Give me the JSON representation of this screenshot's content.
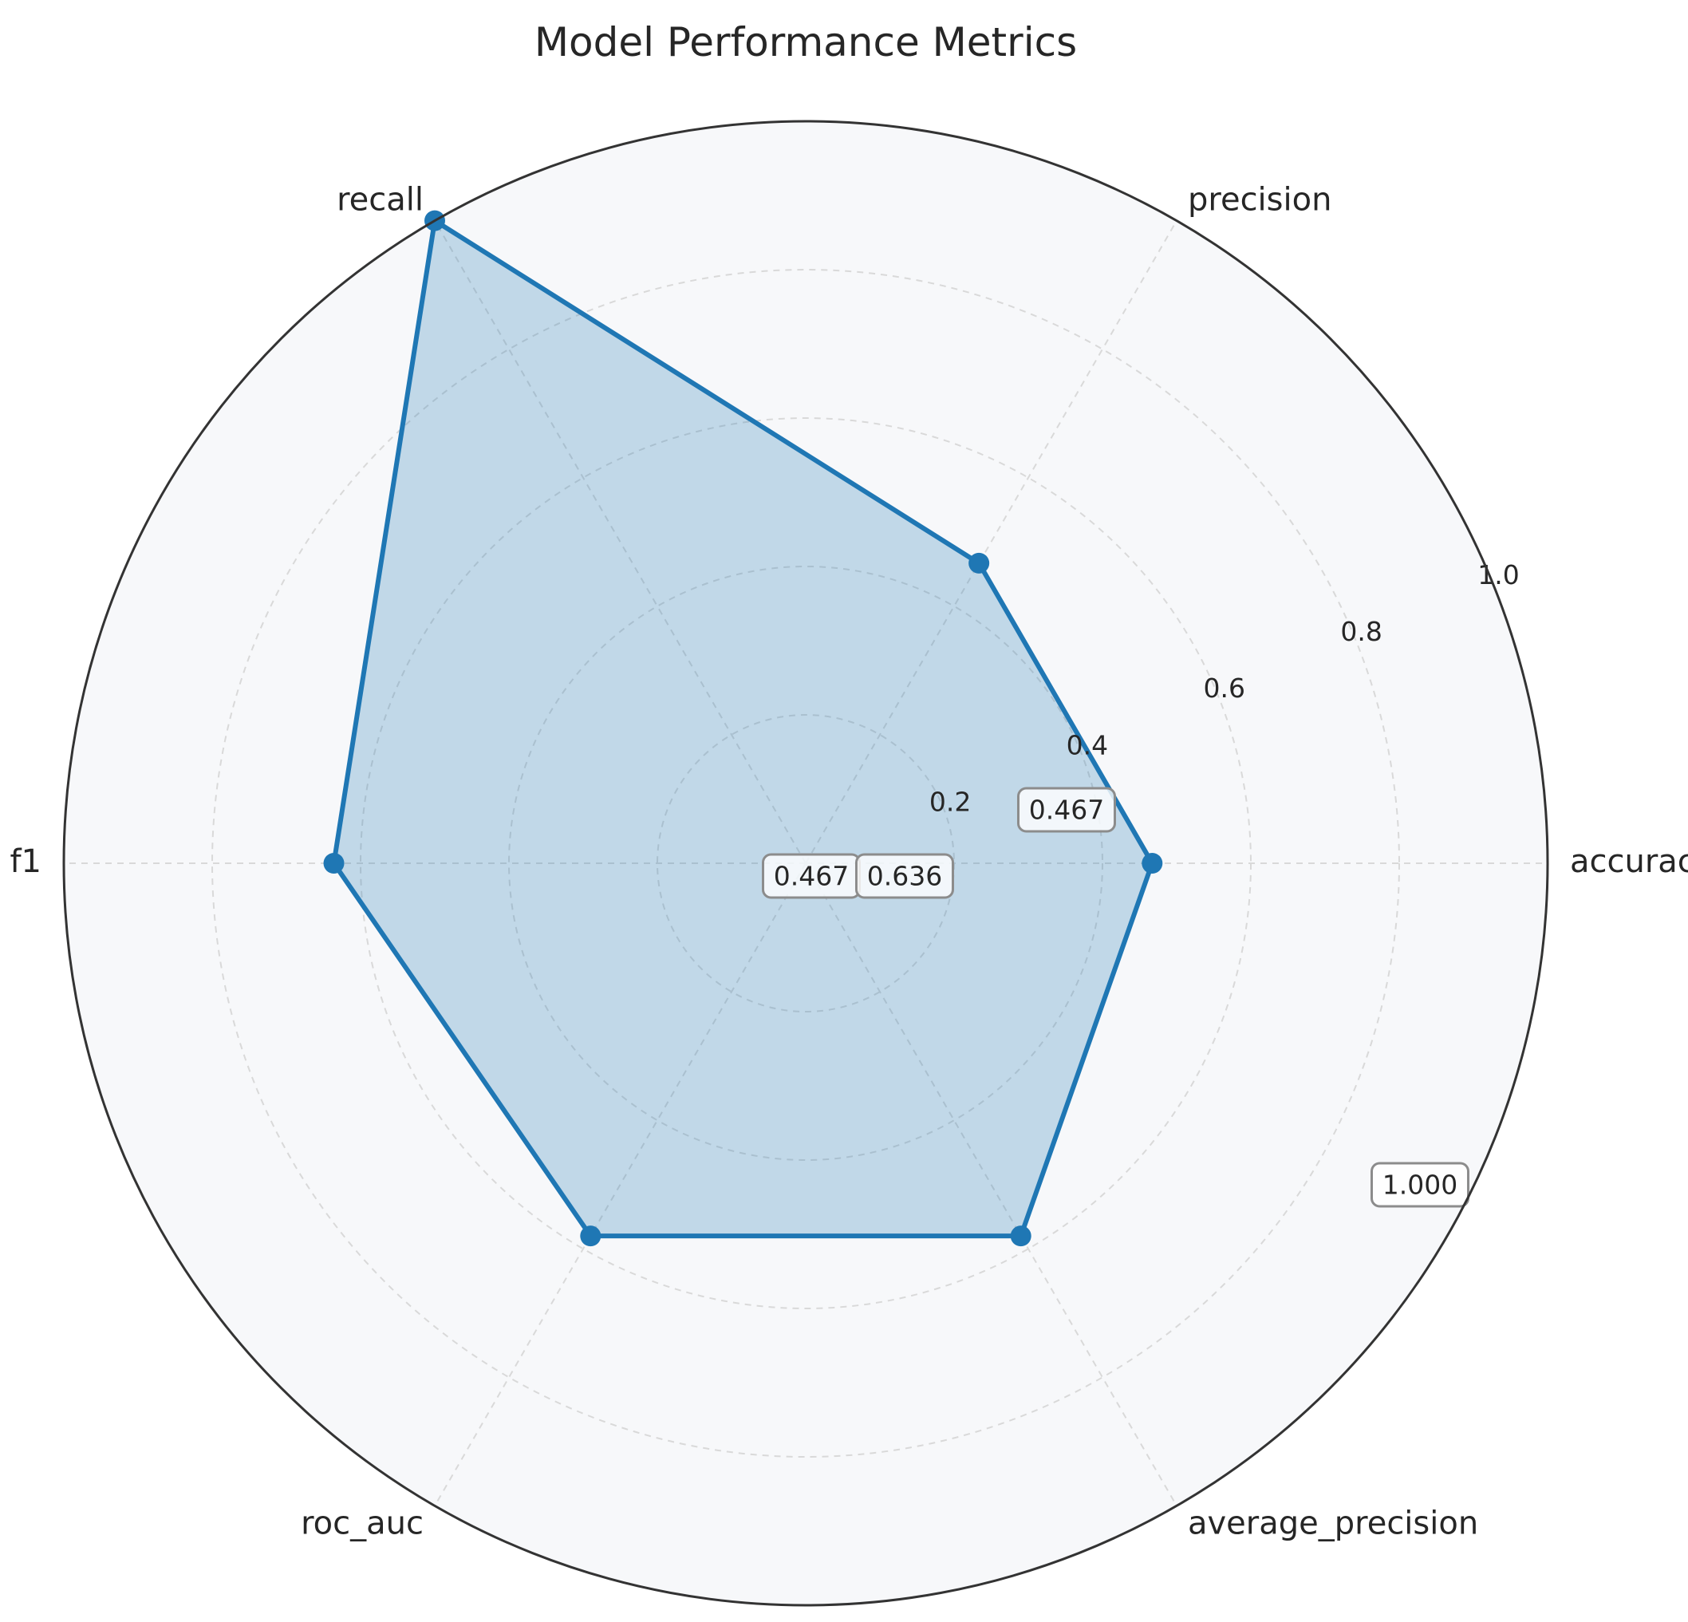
{
  "chart_data": {
    "type": "radar",
    "title": "Model Performance Metrics",
    "categories": [
      "accuracy",
      "precision",
      "recall",
      "f1",
      "roc_auc",
      "average_precision"
    ],
    "series": [
      {
        "values": [
          0.467,
          0.467,
          1.0,
          0.636,
          0.58,
          0.58
        ]
      }
    ],
    "rlim": [
      0,
      1.0
    ],
    "rticks": [
      "0.2",
      "0.4",
      "0.6",
      "0.8",
      "1.0"
    ],
    "value_labels": [
      "0.467",
      "0.467",
      "0.636",
      "1.000"
    ],
    "grid": true,
    "colors": {
      "line": "#1f77b4",
      "fill": "#1f77b4",
      "background": "#f7f8fa",
      "outline": "#333333"
    }
  }
}
